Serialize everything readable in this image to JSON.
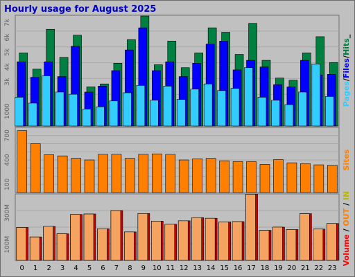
{
  "chart_data": [
    {
      "type": "bar",
      "title": "Hourly usage for August 2025",
      "categories": [
        "0",
        "1",
        "2",
        "3",
        "4",
        "5",
        "6",
        "7",
        "8",
        "9",
        "10",
        "11",
        "12",
        "13",
        "14",
        "15",
        "16",
        "17",
        "18",
        "19",
        "20",
        "21",
        "22",
        "23"
      ],
      "ytick_labels": [
        "1000",
        "3k",
        "4k",
        "5k",
        "6k",
        "7k"
      ],
      "ylim": [
        0,
        7500
      ],
      "series": [
        {
          "name": "Pages",
          "color": "#33ccff",
          "values": [
            1950,
            1550,
            3400,
            2300,
            2150,
            1150,
            1300,
            1700,
            2250,
            2750,
            1750,
            2700,
            1800,
            2500,
            2850,
            2400,
            2550,
            3950,
            1950,
            1750,
            1450,
            2300,
            4200,
            2000
          ]
        },
        {
          "name": "Files",
          "color": "#0000ff",
          "values": [
            4350,
            3300,
            4350,
            3350,
            5400,
            2300,
            2700,
            3750,
            5150,
            6650,
            3750,
            4350,
            3350,
            4250,
            5550,
            5750,
            3800,
            4450,
            4000,
            2800,
            2650,
            4450,
            3450,
            3500
          ]
        },
        {
          "name": "Hits",
          "color": "#008040",
          "values": [
            4950,
            3850,
            6550,
            4650,
            6150,
            2650,
            2850,
            4250,
            5850,
            7450,
            4150,
            5750,
            3950,
            4950,
            6650,
            6350,
            4850,
            6950,
            4450,
            3250,
            3100,
            4950,
            6050,
            4300
          ]
        }
      ]
    },
    {
      "type": "bar",
      "categories": [
        "0",
        "1",
        "2",
        "3",
        "4",
        "5",
        "6",
        "7",
        "8",
        "9",
        "10",
        "11",
        "12",
        "13",
        "14",
        "15",
        "16",
        "17",
        "18",
        "19",
        "20",
        "21",
        "22",
        "23"
      ],
      "ytick_labels": [
        "100",
        "400",
        "700"
      ],
      "ylim": [
        0,
        800
      ],
      "series": [
        {
          "name": "Sites",
          "color": "#ff8000",
          "values": [
            760,
            600,
            465,
            450,
            420,
            400,
            470,
            470,
            420,
            470,
            475,
            470,
            400,
            415,
            420,
            390,
            380,
            380,
            345,
            405,
            365,
            355,
            340,
            335
          ]
        }
      ]
    },
    {
      "type": "bar",
      "categories": [
        "0",
        "1",
        "2",
        "3",
        "4",
        "5",
        "6",
        "7",
        "8",
        "9",
        "10",
        "11",
        "12",
        "13",
        "14",
        "15",
        "16",
        "17",
        "18",
        "19",
        "20",
        "21",
        "22",
        "23"
      ],
      "ytick_labels": [
        "100M",
        "300M"
      ],
      "ylim": [
        0,
        420
      ],
      "series": [
        {
          "name": "IN",
          "color": "#ffff00",
          "values": [
            0,
            0,
            0,
            0,
            0,
            0,
            0,
            0,
            0,
            0,
            0,
            0,
            0,
            0,
            0,
            0,
            0,
            0,
            0,
            0,
            0,
            0,
            0,
            0
          ]
        },
        {
          "name": "OUT",
          "color": "#ff8000",
          "values": [
            0,
            0,
            0,
            0,
            0,
            0,
            0,
            0,
            0,
            0,
            0,
            0,
            0,
            0,
            0,
            0,
            0,
            0,
            0,
            0,
            0,
            0,
            0,
            0
          ]
        },
        {
          "name": "Volume",
          "color": "#ff0000",
          "values": [
            208,
            148,
            215,
            168,
            290,
            293,
            200,
            315,
            180,
            296,
            248,
            228,
            250,
            270,
            266,
            243,
            245,
            418,
            190,
            210,
            195,
            295,
            198,
            233
          ]
        }
      ]
    }
  ],
  "legend": {
    "sep": "/",
    "underscore": "_"
  },
  "colors": {
    "background": "#c0c0c0",
    "plot_background": "#c0c0c0",
    "gridline": "#a8a8a8",
    "title": "#0000cc",
    "volume_face": "#f4a460",
    "volume_edge": "#cc0000"
  }
}
